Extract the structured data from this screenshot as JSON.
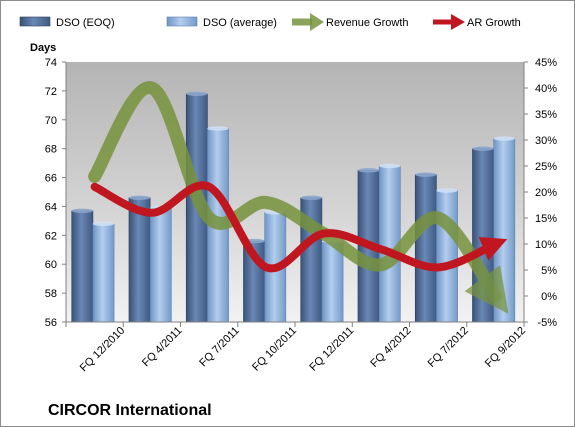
{
  "chart_data": {
    "type": "bar",
    "company": "CIRCOR International",
    "categories": [
      "FQ 12/2010",
      "FQ 4/2011",
      "FQ 7/2011",
      "FQ 10/2011",
      "FQ 12/2011",
      "FQ 4/2012",
      "FQ 7/2012",
      "FQ 9/2012"
    ],
    "ylabel": "Days",
    "ylim": [
      56,
      74
    ],
    "yticks": [
      "56",
      "58",
      "60",
      "62",
      "64",
      "66",
      "68",
      "70",
      "72",
      "74"
    ],
    "y2lim": [
      -5,
      45
    ],
    "y2ticks": [
      "-5%",
      "0%",
      "5%",
      "10%",
      "15%",
      "20%",
      "25%",
      "30%",
      "35%",
      "40%",
      "45%"
    ],
    "legend_position": "top",
    "grid": false,
    "series": [
      {
        "name": "DSO (EOQ)",
        "kind": "bar",
        "axis": "left",
        "color": "#4f6b97",
        "values": [
          63.7,
          64.6,
          71.8,
          61.6,
          64.6,
          66.5,
          66.2,
          68.0
        ]
      },
      {
        "name": "DSO (average)",
        "kind": "bar",
        "axis": "left",
        "color": "#8eb4e3",
        "values": [
          62.8,
          63.9,
          69.4,
          63.6,
          61.6,
          66.8,
          65.1,
          68.7
        ]
      },
      {
        "name": "Revenue Growth",
        "kind": "line",
        "axis": "right",
        "color": "#77933c",
        "values": [
          23,
          40,
          15,
          18,
          12,
          6,
          15,
          0
        ]
      },
      {
        "name": "AR Growth",
        "kind": "line",
        "axis": "right",
        "color": "#c0161f",
        "values": [
          21,
          16,
          21,
          5.5,
          12,
          9,
          5.5,
          10
        ]
      }
    ]
  }
}
